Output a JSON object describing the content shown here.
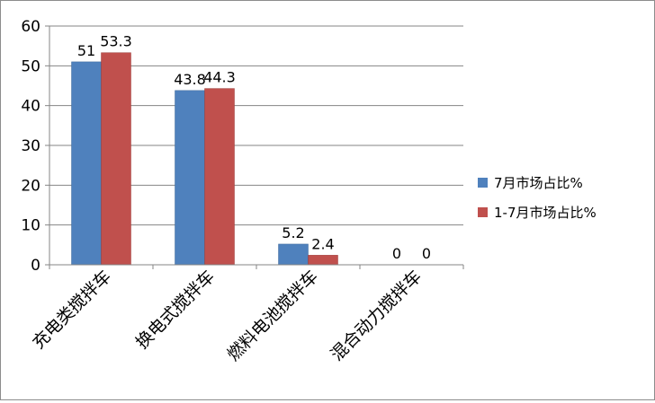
{
  "chart_data": {
    "type": "bar",
    "categories": [
      "充电类搅拌车",
      "换电式搅拌车",
      "燃料电池搅拌车",
      "混合动力搅拌车"
    ],
    "series": [
      {
        "name": "7月市场占比%",
        "values": [
          51,
          43.8,
          5.2,
          0
        ],
        "labels": [
          "51",
          "43.8",
          "5.2",
          "0"
        ],
        "color": "#4f81bd"
      },
      {
        "name": "1-7月市场占比%",
        "values": [
          53.3,
          44.3,
          2.4,
          0
        ],
        "labels": [
          "53.3",
          "44.3",
          "2.4",
          "0"
        ],
        "color": "#c0504d"
      }
    ],
    "ylim": [
      0,
      60
    ],
    "yticks": [
      "0",
      "10",
      "20",
      "30",
      "40",
      "50",
      "60"
    ],
    "grid": true,
    "legend": "right",
    "gridline_color": "#858585"
  }
}
